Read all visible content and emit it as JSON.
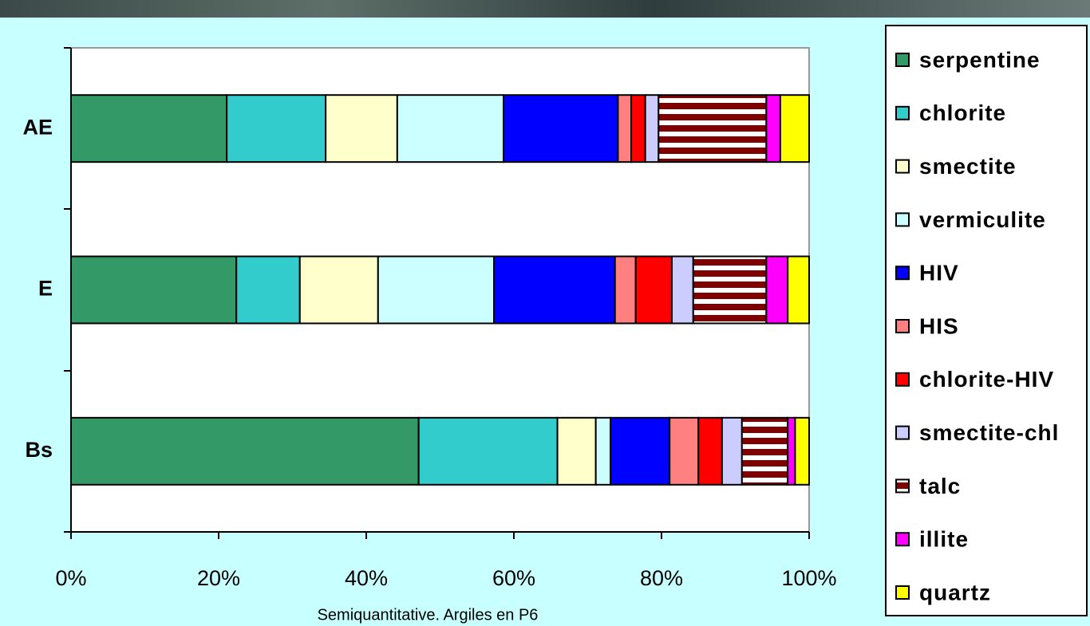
{
  "chart_data": {
    "type": "stacked-bar-horizontal",
    "categories": [
      "AE",
      "E",
      "Bs"
    ],
    "series": [
      {
        "name": "serpentine",
        "color": "#339966",
        "values": [
          21.1,
          22.4,
          47.1
        ]
      },
      {
        "name": "chlorite",
        "color": "#33CCCC",
        "values": [
          13.4,
          8.6,
          18.8
        ]
      },
      {
        "name": "smectite",
        "color": "#FFFFCC",
        "values": [
          9.7,
          10.6,
          5.2
        ]
      },
      {
        "name": "vermiculite",
        "color": "#CCFFFF",
        "values": [
          14.4,
          15.7,
          2.0
        ]
      },
      {
        "name": "HIV",
        "color": "#0000FF",
        "values": [
          15.5,
          16.4,
          8.0
        ]
      },
      {
        "name": "HIS",
        "color": "#FF8080",
        "values": [
          1.8,
          2.8,
          3.9
        ]
      },
      {
        "name": "chlorite-HIV",
        "color": "#FF0000",
        "values": [
          1.9,
          4.9,
          3.2
        ]
      },
      {
        "name": "smectite-chl",
        "color": "#CCCCFF",
        "values": [
          1.8,
          2.9,
          2.7
        ]
      },
      {
        "name": "talc",
        "color": "#800000",
        "pattern": "horizontal-stripes",
        "values": [
          14.6,
          9.9,
          6.2
        ]
      },
      {
        "name": "illite",
        "color": "#FF00FF",
        "values": [
          1.9,
          2.9,
          1.0
        ]
      },
      {
        "name": "quartz",
        "color": "#FFFF00",
        "values": [
          3.9,
          2.9,
          1.9
        ]
      }
    ],
    "xlabel": "Semiquantitative. Argiles en P6",
    "xlim": [
      0,
      100
    ],
    "xticks": [
      {
        "value": 0,
        "label": "0%"
      },
      {
        "value": 20,
        "label": "20%"
      },
      {
        "value": 40,
        "label": "40%"
      },
      {
        "value": 60,
        "label": "60%"
      },
      {
        "value": 80,
        "label": "80%"
      },
      {
        "value": 100,
        "label": "100%"
      }
    ],
    "legend": "right"
  }
}
